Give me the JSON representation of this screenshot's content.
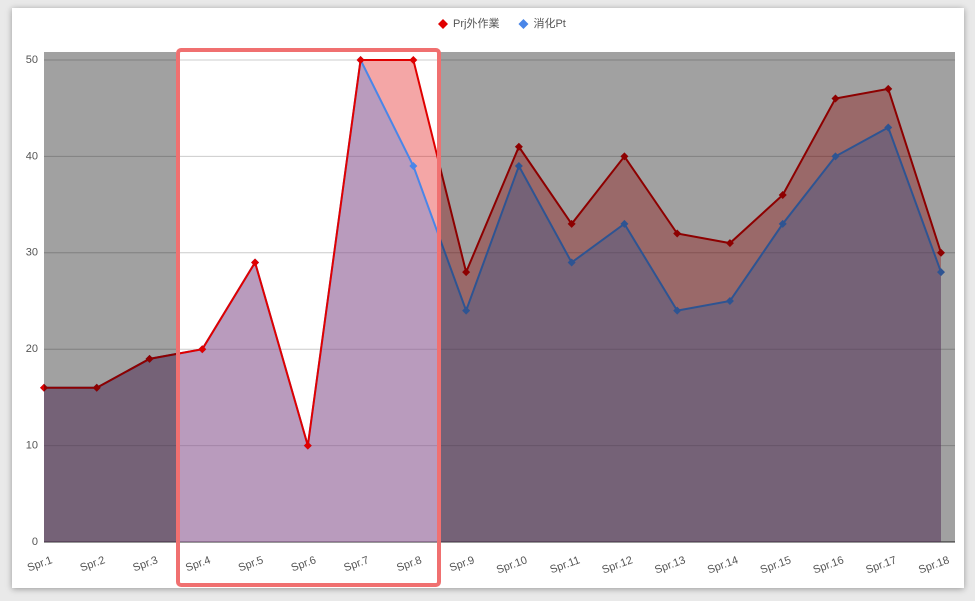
{
  "chart_data": {
    "type": "area",
    "categories": [
      "Spr.1",
      "Spr.2",
      "Spr.3",
      "Spr.4",
      "Spr.5",
      "Spr.6",
      "Spr.7",
      "Spr.8",
      "Spr.9",
      "Spr.10",
      "Spr.11",
      "Spr.12",
      "Spr.13",
      "Spr.14",
      "Spr.15",
      "Spr.16",
      "Spr.17",
      "Spr.18"
    ],
    "series": [
      {
        "name": "Prj外作業",
        "color": "#e00000",
        "values": [
          16,
          16,
          19,
          20,
          29,
          10,
          50,
          50,
          28,
          41,
          33,
          40,
          32,
          31,
          36,
          46,
          47,
          30
        ]
      },
      {
        "name": "消化Pt",
        "color": "#4a86e8",
        "values": [
          16,
          16,
          19,
          20,
          29,
          10,
          50,
          39,
          24,
          39,
          29,
          33,
          24,
          25,
          33,
          40,
          43,
          28
        ]
      }
    ],
    "ylim": [
      0,
      50
    ],
    "yticks": [
      0,
      10,
      20,
      30,
      40,
      50
    ],
    "grid": true,
    "legend": "top"
  }
}
